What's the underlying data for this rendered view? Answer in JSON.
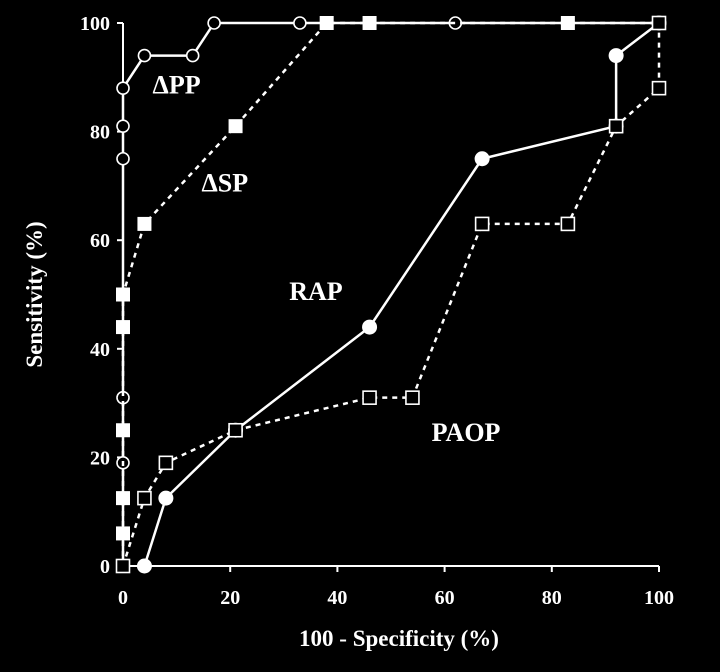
{
  "chart_data": {
    "type": "line",
    "title": "",
    "xlabel": "100 - Specificity (%)",
    "ylabel": "Sensitivity (%)",
    "xlim": [
      0,
      100
    ],
    "ylim": [
      0,
      100
    ],
    "x_ticks": [
      "0",
      "20",
      "40",
      "60",
      "80",
      "100"
    ],
    "y_ticks": [
      "0",
      "20",
      "40",
      "60",
      "80",
      "100"
    ],
    "grid": false,
    "background": "#000000",
    "foreground": "#ffffff",
    "series": [
      {
        "name": "ΔPP",
        "marker": "open-circle",
        "line": "solid",
        "points": [
          [
            0,
            0
          ],
          [
            0,
            6
          ],
          [
            0,
            12.5
          ],
          [
            0,
            19
          ],
          [
            0,
            31
          ],
          [
            0,
            44
          ],
          [
            0,
            50
          ],
          [
            0,
            75
          ],
          [
            0,
            81
          ],
          [
            0,
            88
          ],
          [
            4,
            94
          ],
          [
            13,
            94
          ],
          [
            17,
            100
          ],
          [
            33,
            100
          ],
          [
            62,
            100
          ],
          [
            100,
            100
          ]
        ]
      },
      {
        "name": "ΔSP",
        "marker": "filled-square",
        "line": "dotted",
        "points": [
          [
            0,
            0
          ],
          [
            0,
            6
          ],
          [
            0,
            12.5
          ],
          [
            0,
            25
          ],
          [
            0,
            44
          ],
          [
            0,
            50
          ],
          [
            4,
            63
          ],
          [
            21,
            81
          ],
          [
            38,
            100
          ],
          [
            46,
            100
          ],
          [
            83,
            100
          ],
          [
            100,
            100
          ]
        ]
      },
      {
        "name": "RAP",
        "marker": "filled-circle",
        "line": "solid",
        "points": [
          [
            4,
            0
          ],
          [
            8,
            12.5
          ],
          [
            21,
            25
          ],
          [
            46,
            44
          ],
          [
            67,
            75
          ],
          [
            92,
            81
          ],
          [
            92,
            94
          ],
          [
            100,
            100
          ]
        ]
      },
      {
        "name": "PAOP",
        "marker": "open-square",
        "line": "dotted",
        "points": [
          [
            0,
            0
          ],
          [
            4,
            12.5
          ],
          [
            8,
            19
          ],
          [
            21,
            25
          ],
          [
            46,
            31
          ],
          [
            54,
            31
          ],
          [
            67,
            63
          ],
          [
            83,
            63
          ],
          [
            92,
            81
          ],
          [
            100,
            88
          ],
          [
            100,
            100
          ]
        ]
      }
    ],
    "annotations": [
      {
        "text": "ΔPP",
        "x": 10,
        "y": 87
      },
      {
        "text": "ΔSP",
        "x": 19,
        "y": 69
      },
      {
        "text": "RAP",
        "x": 36,
        "y": 49
      },
      {
        "text": "PAOP",
        "x": 64,
        "y": 23
      }
    ]
  }
}
